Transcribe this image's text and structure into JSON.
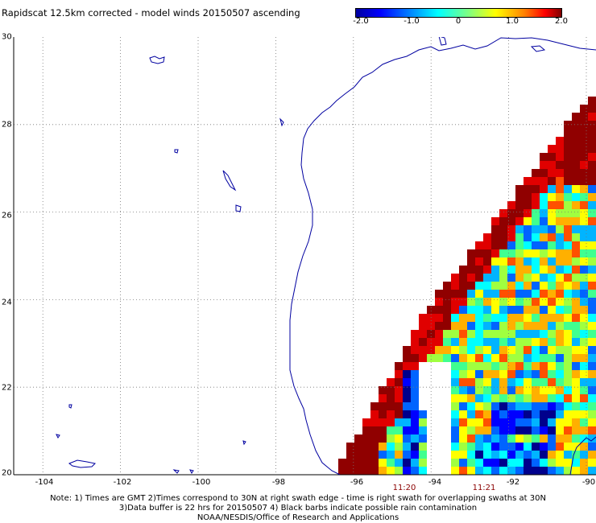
{
  "title": "Rapidscat 12.5km corrected - model winds 20150507 ascending",
  "colorbar": {
    "ticks": [
      "-2.0",
      "-1.0",
      "0",
      "1.0",
      "2.0"
    ],
    "tick_values": [
      -2.0,
      -1.0,
      0,
      1.0,
      2.0
    ]
  },
  "map": {
    "lon_range": [
      -105,
      -90
    ],
    "lat_range": [
      20,
      30
    ],
    "lon_ticks": [
      "-104",
      "-102",
      "-100",
      "-98",
      "-96",
      "-94",
      "-92",
      "-90"
    ],
    "lon_tick_values": [
      -104,
      -102,
      -100,
      -98,
      -96,
      -94,
      -92,
      -90
    ],
    "lat_ticks": [
      "30",
      "28",
      "26",
      "24",
      "22",
      "20"
    ],
    "lat_tick_values": [
      30,
      28,
      26,
      24,
      22,
      20
    ],
    "grid": true,
    "time_labels": [
      "11:20",
      "11:21"
    ],
    "time_label_lons": [
      -94.75,
      -92.8
    ],
    "colors": {
      "coast": "#0000a0",
      "grid": "#777777",
      "time": "#8b0000"
    }
  },
  "notes": [
    "Note: 1) Times are GMT 2)Times correspond to 30N at right swath edge - time is right swath for overlapping swaths at 30N",
    "3)Data buffer is 22 hrs for 20150507 4) Black barbs indicate possible rain contamination",
    "NOAA/NESDIS/Office of Research and Applications"
  ]
}
